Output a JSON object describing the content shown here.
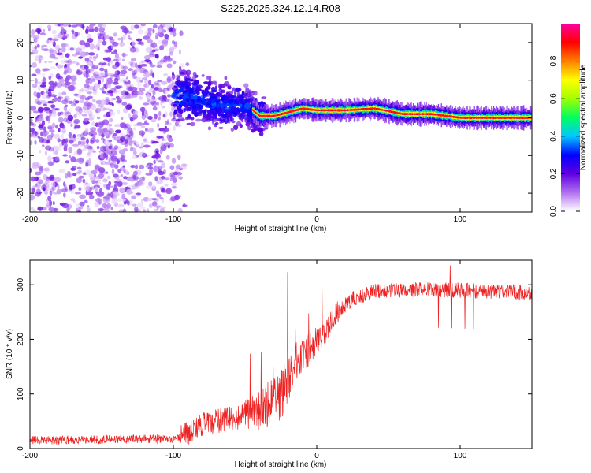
{
  "title": "S225.2025.324.12.14.R08",
  "chart_data": [
    {
      "type": "heatmap",
      "name": "spectrogram",
      "xlabel": "Height of straight line (km)",
      "ylabel": "Frequency (Hz)",
      "xlim": [
        -200,
        150
      ],
      "ylim": [
        -25,
        25
      ],
      "xticks": [
        -200,
        -100,
        0,
        100
      ],
      "yticks": [
        -20,
        -10,
        0,
        10,
        20
      ],
      "colorbar": {
        "label": "Normalized spectral amplitude",
        "range": [
          0,
          1
        ],
        "ticks": [
          "0.0",
          "0.2",
          "0.4",
          "0.6",
          "0.8"
        ],
        "colors": [
          "#ffffff",
          "#b070f0",
          "#6000e0",
          "#0000ff",
          "#00c8ff",
          "#00ff60",
          "#a0ff00",
          "#ffff00",
          "#ff8000",
          "#ff0000",
          "#ff00a0"
        ]
      },
      "ridge": [
        {
          "x": -95,
          "freq": 6
        },
        {
          "x": -85,
          "freq": 5
        },
        {
          "x": -75,
          "freq": 4
        },
        {
          "x": -65,
          "freq": 3
        },
        {
          "x": -55,
          "freq": 3.5
        },
        {
          "x": -48,
          "freq": 3
        },
        {
          "x": -40,
          "freq": 0.5
        },
        {
          "x": -30,
          "freq": 0.5
        },
        {
          "x": -20,
          "freq": 1.5
        },
        {
          "x": -10,
          "freq": 2.5
        },
        {
          "x": 0,
          "freq": 2
        },
        {
          "x": 20,
          "freq": 2
        },
        {
          "x": 40,
          "freq": 2.5
        },
        {
          "x": 60,
          "freq": 1
        },
        {
          "x": 80,
          "freq": 1
        },
        {
          "x": 100,
          "freq": 0
        },
        {
          "x": 120,
          "freq": 0
        },
        {
          "x": 150,
          "freq": 0
        }
      ]
    },
    {
      "type": "line",
      "name": "snr",
      "xlabel": "Height of straight line (km)",
      "ylabel": "SNR (10 * v/v)",
      "xlim": [
        -200,
        150
      ],
      "ylim": [
        0,
        345
      ],
      "xticks": [
        -200,
        -100,
        0,
        100
      ],
      "yticks": [
        0,
        100,
        200,
        300
      ],
      "color": "#ee2222",
      "trend": [
        {
          "x": -200,
          "y": 15
        },
        {
          "x": -100,
          "y": 18
        },
        {
          "x": -90,
          "y": 28
        },
        {
          "x": -80,
          "y": 45
        },
        {
          "x": -60,
          "y": 55
        },
        {
          "x": -40,
          "y": 70
        },
        {
          "x": -25,
          "y": 100
        },
        {
          "x": -15,
          "y": 150
        },
        {
          "x": -5,
          "y": 185
        },
        {
          "x": 5,
          "y": 210
        },
        {
          "x": 15,
          "y": 250
        },
        {
          "x": 25,
          "y": 275
        },
        {
          "x": 40,
          "y": 288
        },
        {
          "x": 70,
          "y": 292
        },
        {
          "x": 100,
          "y": 290
        },
        {
          "x": 150,
          "y": 285
        }
      ]
    }
  ]
}
